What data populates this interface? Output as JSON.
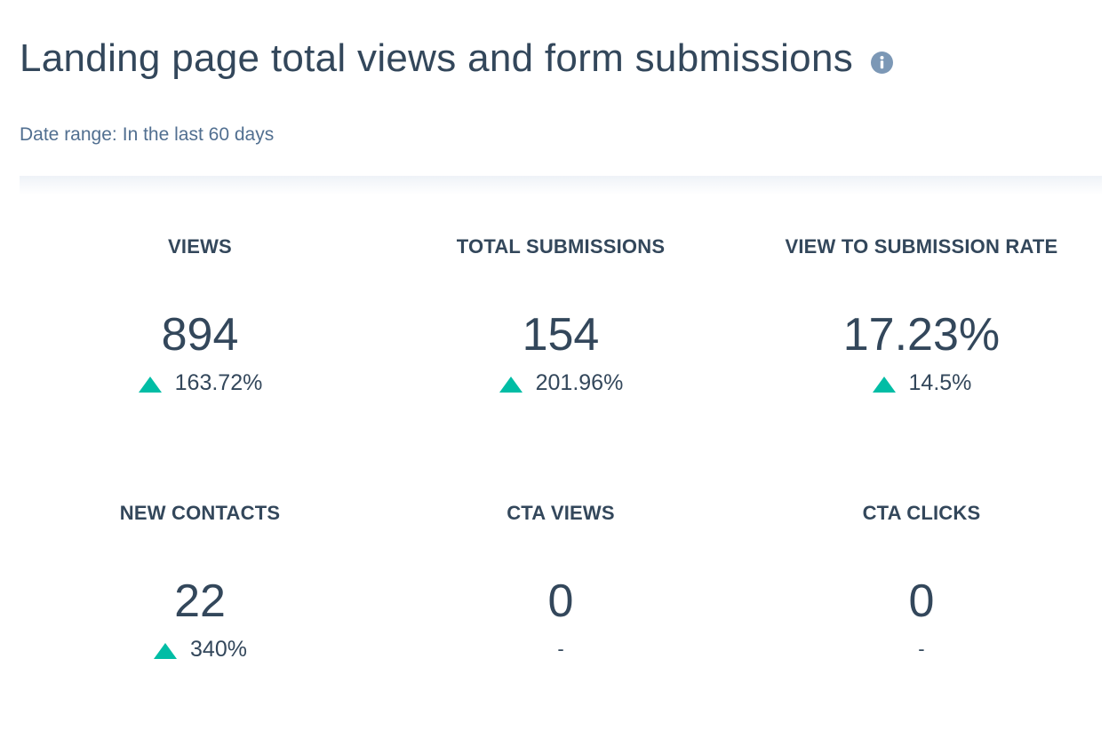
{
  "header": {
    "title": "Landing page total views and form submissions",
    "info_icon": "info-circle-icon"
  },
  "date_range": {
    "label": "Date range:",
    "value": "In the last 60 days"
  },
  "colors": {
    "text": "#33475b",
    "muted": "#516f90",
    "info_icon": "#7c98b6",
    "increase": "#00bda5"
  },
  "kpis": [
    {
      "label": "VIEWS",
      "value": "894",
      "change": "163.72%",
      "trend": "up"
    },
    {
      "label": "TOTAL SUBMISSIONS",
      "value": "154",
      "change": "201.96%",
      "trend": "up"
    },
    {
      "label": "VIEW TO SUBMISSION RATE",
      "value": "17.23%",
      "change": "14.5%",
      "trend": "up"
    },
    {
      "label": "NEW CONTACTS",
      "value": "22",
      "change": "340%",
      "trend": "up"
    },
    {
      "label": "CTA VIEWS",
      "value": "0",
      "change": "-",
      "trend": "none"
    },
    {
      "label": "CTA CLICKS",
      "value": "0",
      "change": "-",
      "trend": "none"
    }
  ]
}
